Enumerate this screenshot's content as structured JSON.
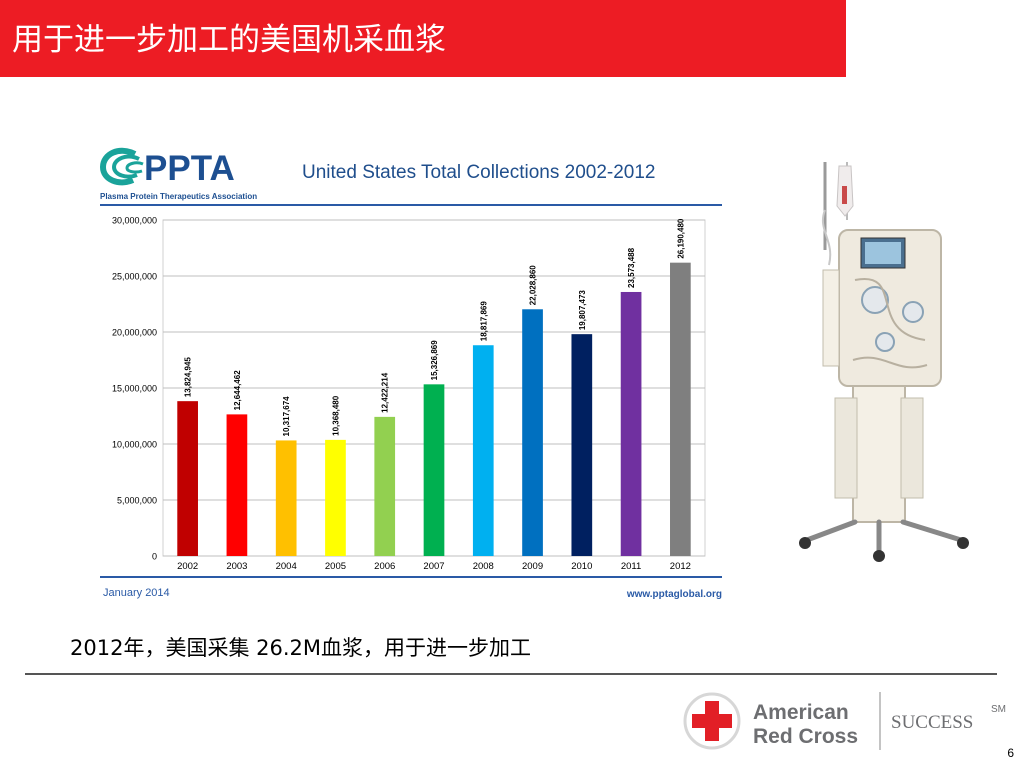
{
  "slide": {
    "title": "用于进一步加工的美国机采血浆",
    "caption": "2012年，美国采集 26.2M血浆，用于进一步加工",
    "page_number": "6"
  },
  "figure": {
    "org_acronym": "PPTA",
    "org_full_name": "Plasma Protein Therapeutics Association",
    "date_note": "January 2014",
    "website": "www.pptaglobal.org"
  },
  "footer": {
    "logo_line1": "American",
    "logo_line2": "Red Cross",
    "tagline": "SUCCESS",
    "tagline_mark": "SM"
  },
  "colors": {
    "title_bar": "#ed1c24",
    "footer_blue": "#2a5aa6",
    "logo_red": "#e21f26",
    "logo_gray": "#6d6e71"
  },
  "chart_data": {
    "type": "bar",
    "title": "United States Total Collections 2002-2012",
    "categories": [
      "2002",
      "2003",
      "2004",
      "2005",
      "2006",
      "2007",
      "2008",
      "2009",
      "2010",
      "2011",
      "2012"
    ],
    "values": [
      13824945,
      12644462,
      10317674,
      10368480,
      12422214,
      15326869,
      18817869,
      22028860,
      19807473,
      23573488,
      26190480
    ],
    "value_labels": [
      "13,824,945",
      "12,644,462",
      "10,317,674",
      "10,368,480",
      "12,422,214",
      "15,326,869",
      "18,817,869",
      "22,028,860",
      "19,807,473",
      "23,573,488",
      "26,190,480"
    ],
    "bar_colors": [
      "#c00000",
      "#ff0000",
      "#ffc000",
      "#ffff00",
      "#92d050",
      "#00b050",
      "#00b0f0",
      "#0070c0",
      "#002060",
      "#7030a0",
      "#7f7f7f"
    ],
    "ylim": [
      0,
      30000000
    ],
    "yticks": [
      0,
      5000000,
      10000000,
      15000000,
      20000000,
      25000000,
      30000000
    ],
    "ytick_labels": [
      "0",
      "5,000,000",
      "10,000,000",
      "15,000,000",
      "20,000,000",
      "25,000,000",
      "30,000,000"
    ],
    "grid": true,
    "xlabel": "",
    "ylabel": ""
  }
}
